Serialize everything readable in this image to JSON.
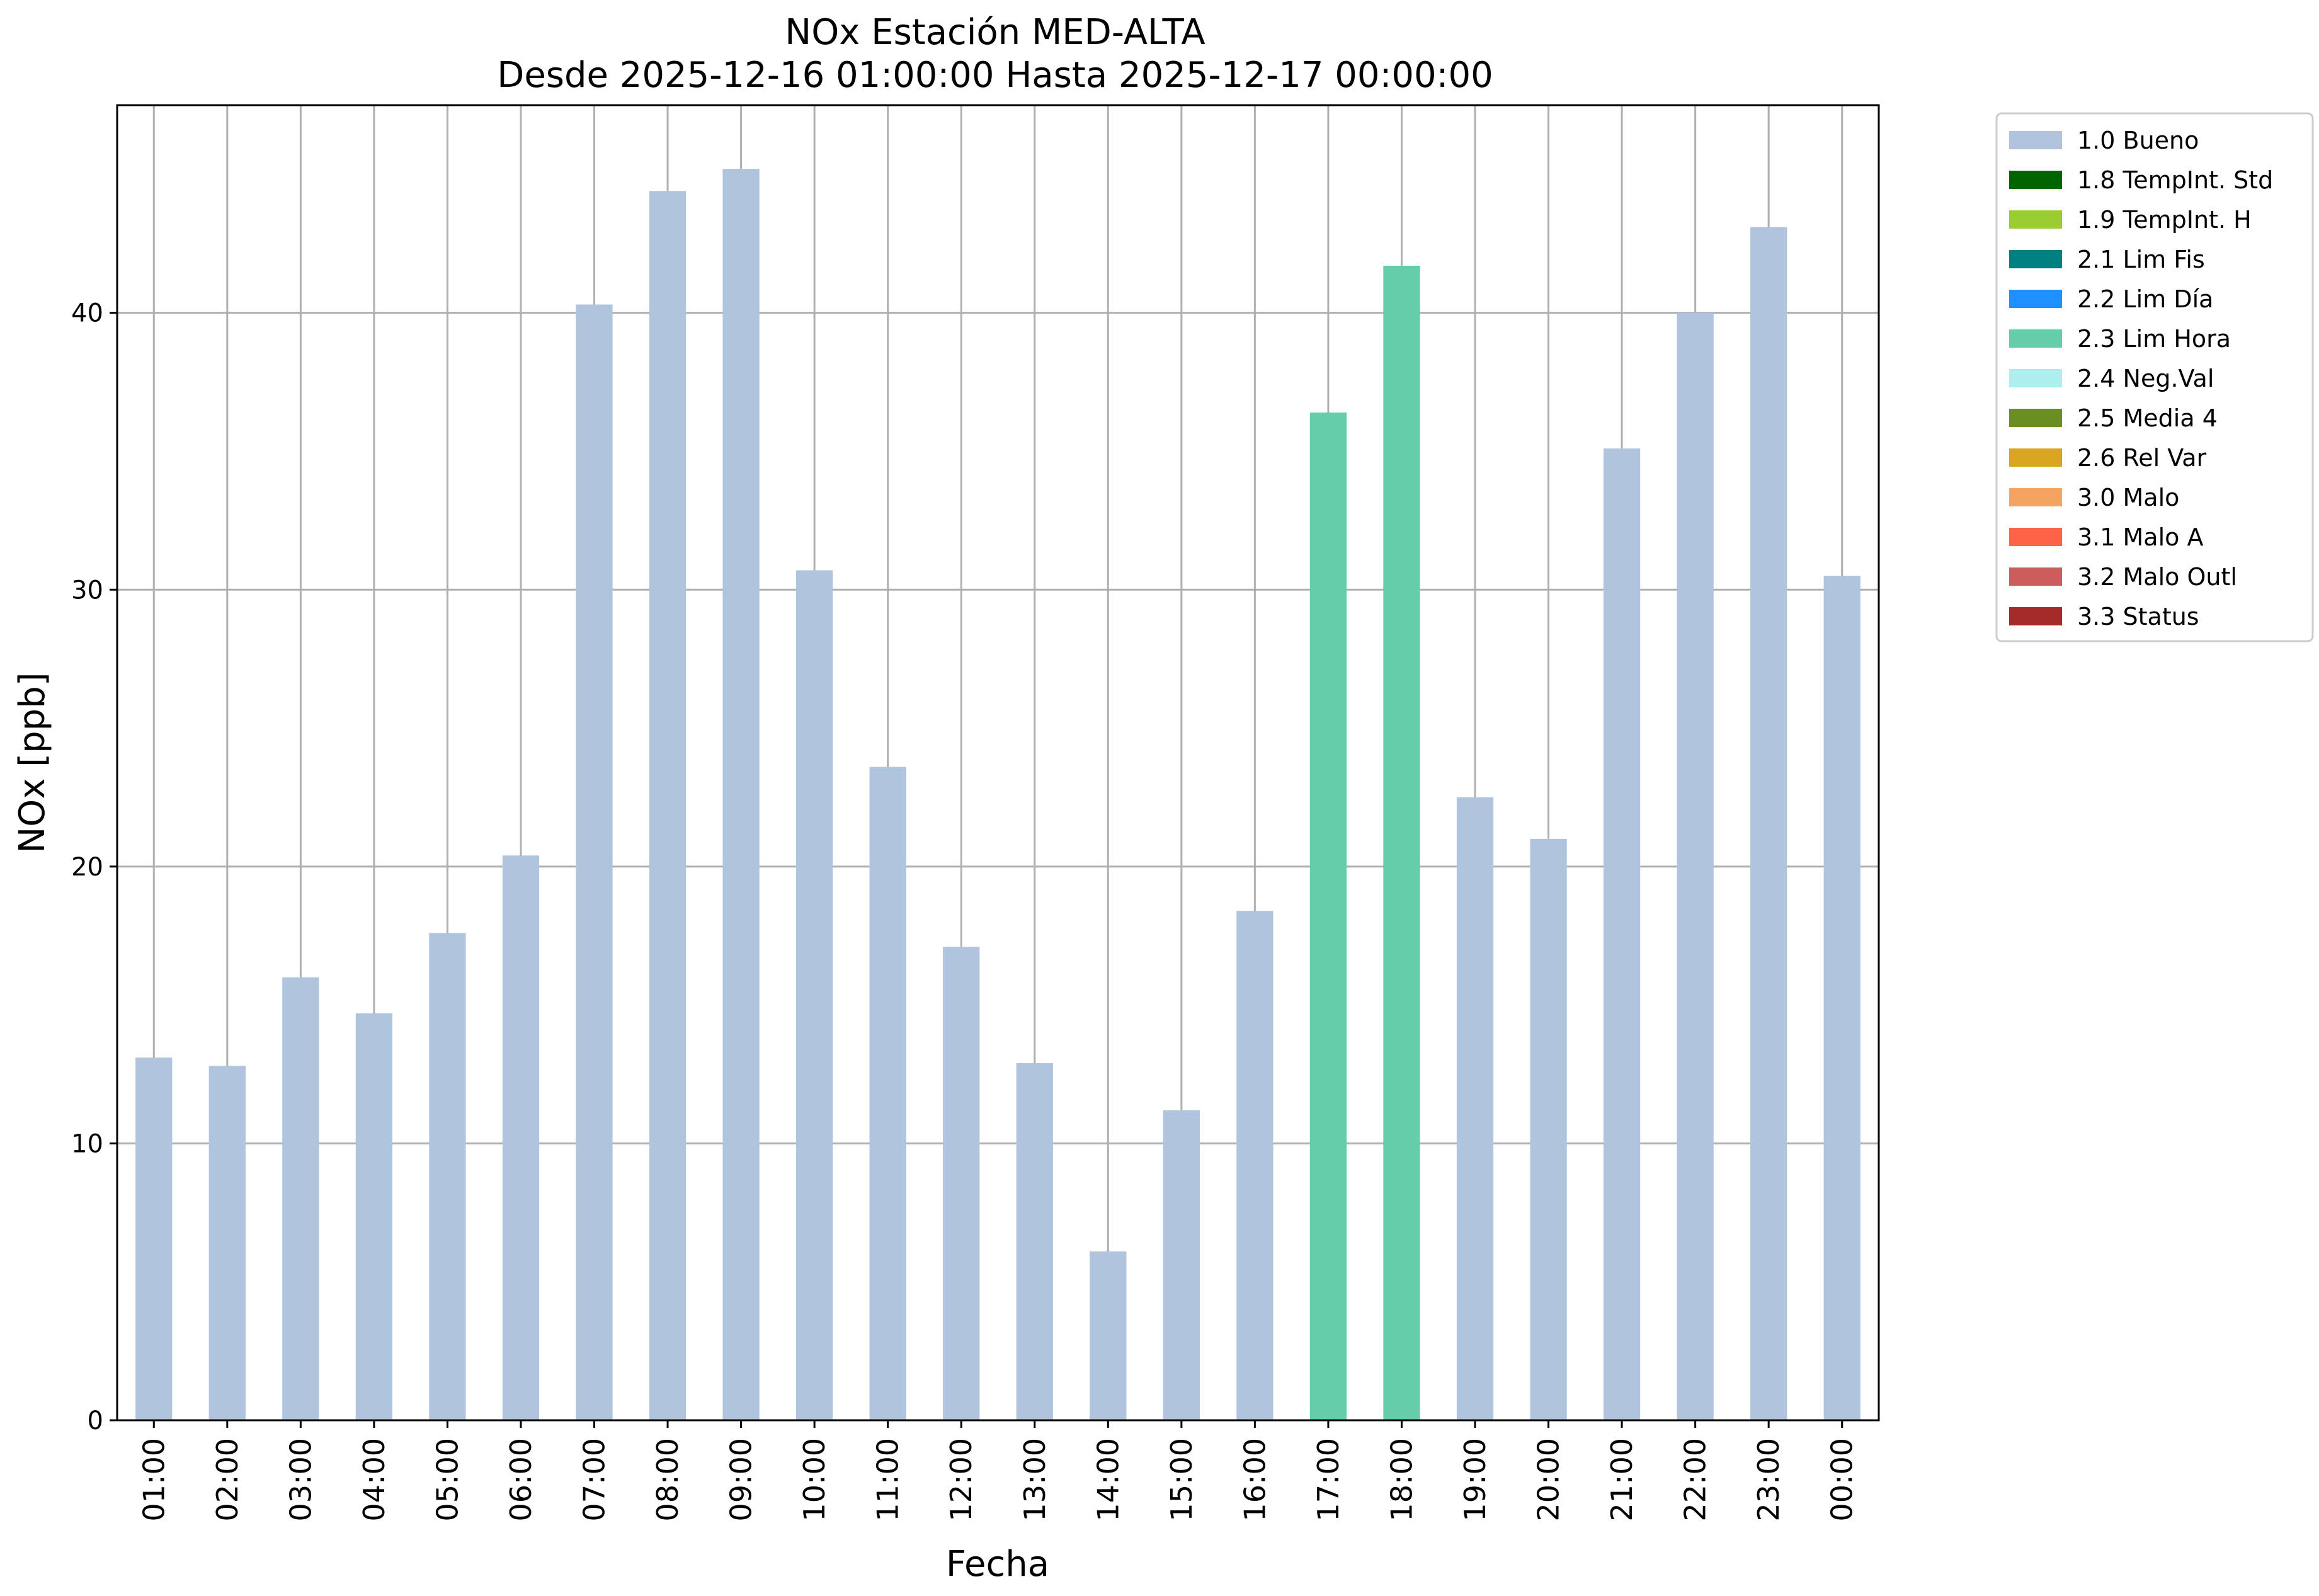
{
  "chart_data": {
    "type": "bar",
    "title": "NOx Estación MED-ALTA",
    "subtitle": "Desde 2025-12-16 01:00:00 Hasta 2025-12-17 00:00:00",
    "xlabel": "Fecha",
    "ylabel": "NOx [ppb]",
    "ylim": [
      0,
      47.5
    ],
    "yticks": [
      "0",
      "10",
      "20",
      "30",
      "40"
    ],
    "grid": true,
    "legend_position": "outside top-right",
    "categories": [
      "01:00",
      "02:00",
      "03:00",
      "04:00",
      "05:00",
      "06:00",
      "07:00",
      "08:00",
      "09:00",
      "10:00",
      "11:00",
      "12:00",
      "13:00",
      "14:00",
      "15:00",
      "16:00",
      "17:00",
      "18:00",
      "19:00",
      "20:00",
      "21:00",
      "22:00",
      "23:00",
      "00:00"
    ],
    "values": [
      13.1,
      12.8,
      16.0,
      14.7,
      17.6,
      20.4,
      40.3,
      44.4,
      45.2,
      30.7,
      23.6,
      17.1,
      12.9,
      6.1,
      11.2,
      18.4,
      36.4,
      41.7,
      22.5,
      21.0,
      35.1,
      40.0,
      43.1,
      30.5
    ],
    "flags": [
      "1.0 Bueno",
      "1.0 Bueno",
      "1.0 Bueno",
      "1.0 Bueno",
      "1.0 Bueno",
      "1.0 Bueno",
      "1.0 Bueno",
      "1.0 Bueno",
      "1.0 Bueno",
      "1.0 Bueno",
      "1.0 Bueno",
      "1.0 Bueno",
      "1.0 Bueno",
      "1.0 Bueno",
      "1.0 Bueno",
      "1.0 Bueno",
      "2.3 Lim Hora",
      "2.3 Lim Hora",
      "1.0 Bueno",
      "1.0 Bueno",
      "1.0 Bueno",
      "1.0 Bueno",
      "1.0 Bueno",
      "1.0 Bueno"
    ],
    "legend": [
      {
        "name": "1.0 Bueno",
        "color": "#b0c4de"
      },
      {
        "name": "1.8 TempInt. Std",
        "color": "#006400"
      },
      {
        "name": "1.9 TempInt. H",
        "color": "#9acd32"
      },
      {
        "name": "2.1 Lim Fis",
        "color": "#008080"
      },
      {
        "name": "2.2 Lim Día",
        "color": "#1e90ff"
      },
      {
        "name": "2.3 Lim Hora",
        "color": "#66cdaa"
      },
      {
        "name": "2.4 Neg.Val",
        "color": "#afeeee"
      },
      {
        "name": "2.5 Media 4",
        "color": "#6b8e23"
      },
      {
        "name": "2.6 Rel Var",
        "color": "#daa520"
      },
      {
        "name": "3.0 Malo",
        "color": "#f4a460"
      },
      {
        "name": "3.1 Malo A",
        "color": "#ff6347"
      },
      {
        "name": "3.2 Malo Outl",
        "color": "#cd5c5c"
      },
      {
        "name": "3.3 Status",
        "color": "#a52a2a"
      }
    ]
  }
}
